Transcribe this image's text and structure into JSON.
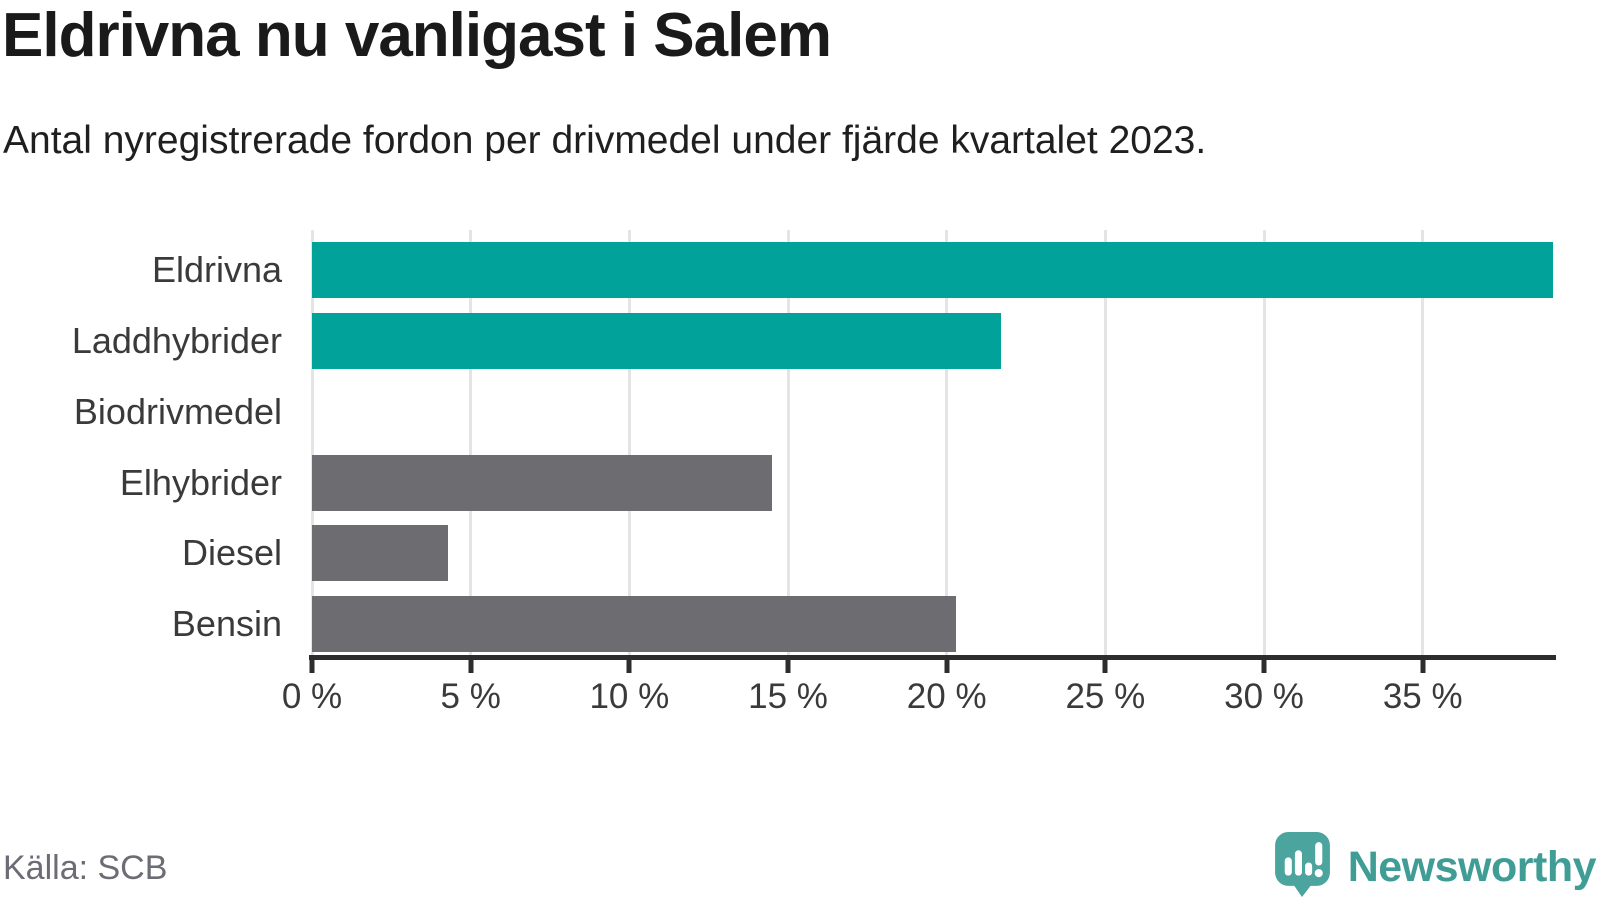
{
  "header": {
    "title": "Eldrivna nu vanligast i Salem",
    "subtitle": "Antal nyregistrerade fordon per drivmedel under fjärde kvartalet 2023."
  },
  "footer": {
    "source": "Källa: SCB",
    "brand_name": "Newsworthy"
  },
  "colors": {
    "accent_teal": "#00a29a",
    "muted_gray": "#6c6c71",
    "axis": "#2d2d2d",
    "grid": "#e4e4e4",
    "brand": "#3f9d96",
    "brand_icon": "#4ba49d",
    "icon_marks": "#ffffff"
  },
  "chart_data": {
    "type": "bar",
    "orientation": "horizontal",
    "title": "Eldrivna nu vanligast i Salem",
    "subtitle": "Antal nyregistrerade fordon per drivmedel under fjärde kvartalet 2023.",
    "categories": [
      "Eldrivna",
      "Laddhybrider",
      "Biodrivmedel",
      "Elhybrider",
      "Diesel",
      "Bensin"
    ],
    "values": [
      39.1,
      21.7,
      0,
      14.5,
      4.3,
      20.3
    ],
    "unit": "%",
    "bar_colors": [
      "#00a29a",
      "#00a29a",
      "#6c6c71",
      "#6c6c71",
      "#6c6c71",
      "#6c6c71"
    ],
    "xlabel": "",
    "ylabel": "",
    "xlim": [
      0,
      39.2
    ],
    "xticks": [
      0,
      5,
      10,
      15,
      20,
      25,
      30,
      35
    ],
    "xtick_labels": [
      "0 %",
      "5 %",
      "10 %",
      "15 %",
      "20 %",
      "25 %",
      "30 %",
      "35 %"
    ],
    "grid": "vertical",
    "legend": "none",
    "note": "teal bars highlight electric (Eldrivna) and plug-in hybrid (Laddhybrider) vehicles; Biodrivmedel is zero"
  }
}
